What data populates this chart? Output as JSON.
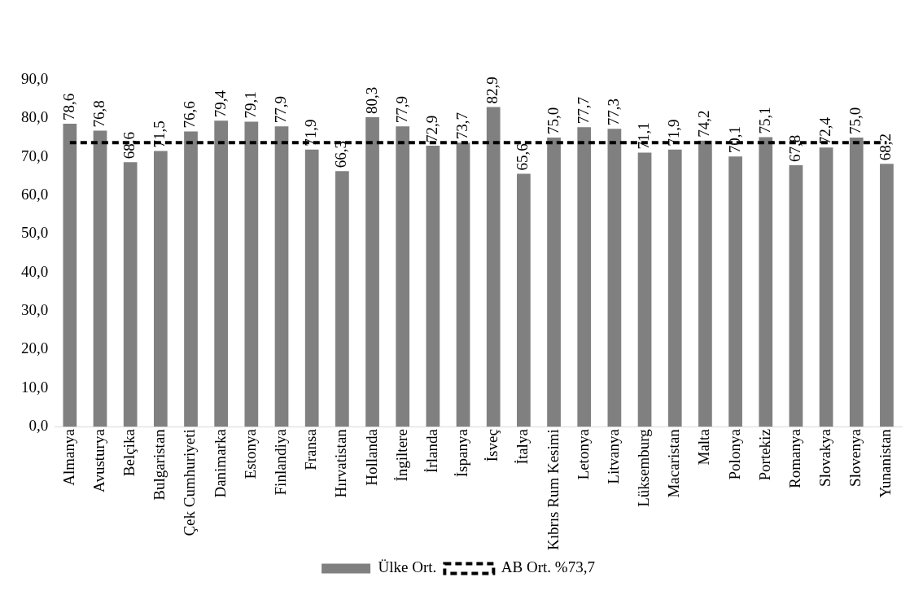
{
  "chart_data": {
    "type": "bar",
    "categories": [
      "Almanya",
      "Avusturya",
      "Belçika",
      "Bulgaristan",
      "Çek Cumhuriyeti",
      "Danimarka",
      "Estonya",
      "Finlandiya",
      "Fransa",
      "Hırvatistan",
      "Hollanda",
      "İngiltere",
      "İrlanda",
      "İspanya",
      "İsveç",
      "İtalya",
      "Kıbrıs Rum Kesimi",
      "Letonya",
      "Litvanya",
      "Lüksemburg",
      "Macaristan",
      "Malta",
      "Polonya",
      "Portekiz",
      "Romanya",
      "Slovakya",
      "Slovenya",
      "Yunanistan"
    ],
    "series": [
      {
        "name": "Ülke Ort.",
        "color": "#808080",
        "values": [
          78.6,
          76.8,
          68.6,
          71.5,
          76.6,
          79.4,
          79.1,
          77.9,
          71.9,
          66.3,
          80.3,
          77.9,
          72.9,
          73.7,
          82.9,
          65.6,
          75.0,
          77.7,
          77.3,
          71.1,
          71.9,
          74.2,
          70.1,
          75.1,
          67.8,
          72.4,
          75.0,
          68.2
        ],
        "value_labels": [
          "78,6",
          "76,8",
          "68,6",
          "71,5",
          "76,6",
          "79,4",
          "79,1",
          "77,9",
          "71,9",
          "66,3",
          "80,3",
          "77,9",
          "72,9",
          "73,7",
          "82,9",
          "65,6",
          "75,0",
          "77,7",
          "77,3",
          "71,1",
          "71,9",
          "74,2",
          "70,1",
          "75,1",
          "67,8",
          "72,4",
          "75,0",
          "68,2"
        ]
      },
      {
        "name": "AB Ort. %73,7",
        "type": "line",
        "color": "#000000",
        "line_style": "dashed",
        "marker": "none",
        "values": [
          73.7,
          73.7,
          73.7,
          73.7,
          73.7,
          73.7,
          73.7,
          73.7,
          73.7,
          73.7,
          73.7,
          73.7,
          73.7,
          73.7,
          73.7,
          73.7,
          73.7,
          73.7,
          73.7,
          73.7,
          73.7,
          73.7,
          73.7,
          73.7,
          73.7,
          73.7,
          73.7,
          73.7
        ]
      }
    ],
    "ylim": [
      0,
      90
    ],
    "yticks": [
      {
        "value": 0,
        "label": "0,0"
      },
      {
        "value": 10,
        "label": "10,0"
      },
      {
        "value": 20,
        "label": "20,0"
      },
      {
        "value": 30,
        "label": "30,0"
      },
      {
        "value": 40,
        "label": "40,0"
      },
      {
        "value": 50,
        "label": "50,0"
      },
      {
        "value": 60,
        "label": "60,0"
      },
      {
        "value": 70,
        "label": "70,0"
      },
      {
        "value": 80,
        "label": "80,0"
      },
      {
        "value": 90,
        "label": "90,0"
      }
    ],
    "grid": false,
    "legend": "bottom"
  }
}
